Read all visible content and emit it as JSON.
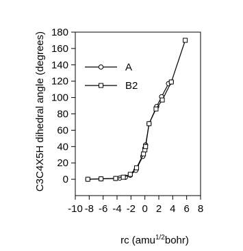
{
  "chart_data": {
    "type": "line",
    "title": "",
    "xlabel": "rc (amu",
    "xlabel_sup": "1/2",
    "xlabel_tail": "bohr)",
    "ylabel": "C3C4X5H dihedral angle (degrees)",
    "xlim": [
      -10,
      8
    ],
    "ylim": [
      -20,
      180
    ],
    "xticks": [
      -10,
      -8,
      -6,
      -4,
      -2,
      0,
      2,
      4,
      6,
      8
    ],
    "yticks": [
      0,
      20,
      40,
      60,
      80,
      100,
      120,
      140,
      160,
      180
    ],
    "legend_position": "upper-left",
    "grid": false,
    "series": [
      {
        "name": "A",
        "marker": "circle",
        "x": [
          -8.2,
          -6.3,
          -4.2,
          -3.6,
          -2.8,
          -2.1,
          -1.3,
          -0.3,
          0.0,
          0.1,
          0.6,
          1.7,
          2.4,
          3.4,
          3.8
        ],
        "y": [
          0,
          0.5,
          1,
          1.5,
          2.5,
          5,
          11,
          28,
          38,
          42,
          68,
          89,
          101,
          117,
          119
        ]
      },
      {
        "name": "B2",
        "marker": "square",
        "x": [
          -8.2,
          -6.3,
          -4.2,
          -3.1,
          -2.1,
          -1.2,
          -0.2,
          0.0,
          0.1,
          0.6,
          1.6,
          2.5,
          3.8,
          5.8
        ],
        "y": [
          0,
          0.5,
          1,
          2.5,
          6,
          14,
          31,
          36,
          40,
          68,
          86,
          97,
          119,
          170
        ]
      }
    ]
  }
}
